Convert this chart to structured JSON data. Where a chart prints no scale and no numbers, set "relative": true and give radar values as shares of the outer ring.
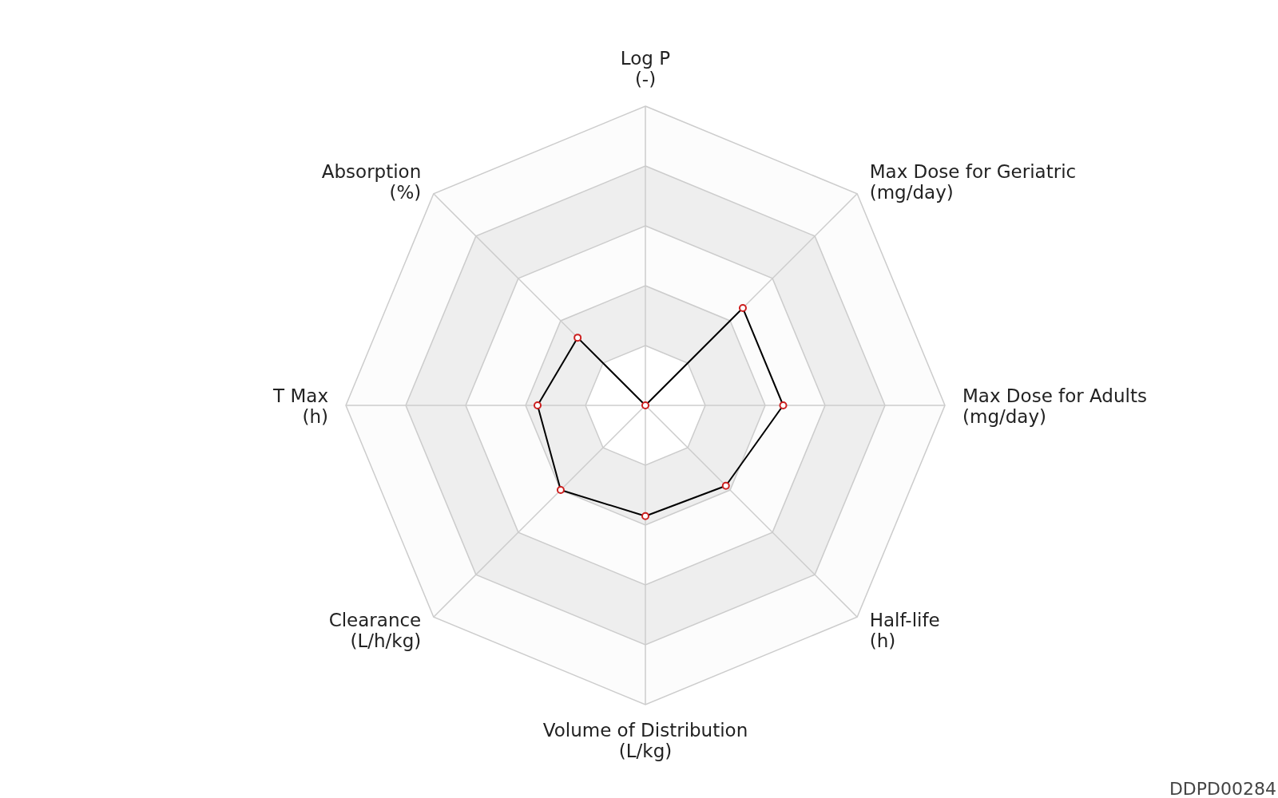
{
  "chart_data": {
    "type": "radar",
    "relative": true,
    "categories": [
      "Log P\n(-)",
      "Max Dose for Geriatric\n(mg/day)",
      "Max Dose for Adults\n(mg/day)",
      "Half-life\n(h)",
      "Volume of Distribution\n(L/kg)",
      "Clearance\n(L/h/kg)",
      "T Max\n(h)",
      "Absorption\n(%)"
    ],
    "series": [
      {
        "color": "#000000",
        "values": [
          0,
          0.46,
          0.46,
          0.38,
          0.37,
          0.4,
          0.36,
          0.32
        ]
      }
    ],
    "marker": "circle",
    "annotations": [
      "DDPD00284"
    ]
  }
}
